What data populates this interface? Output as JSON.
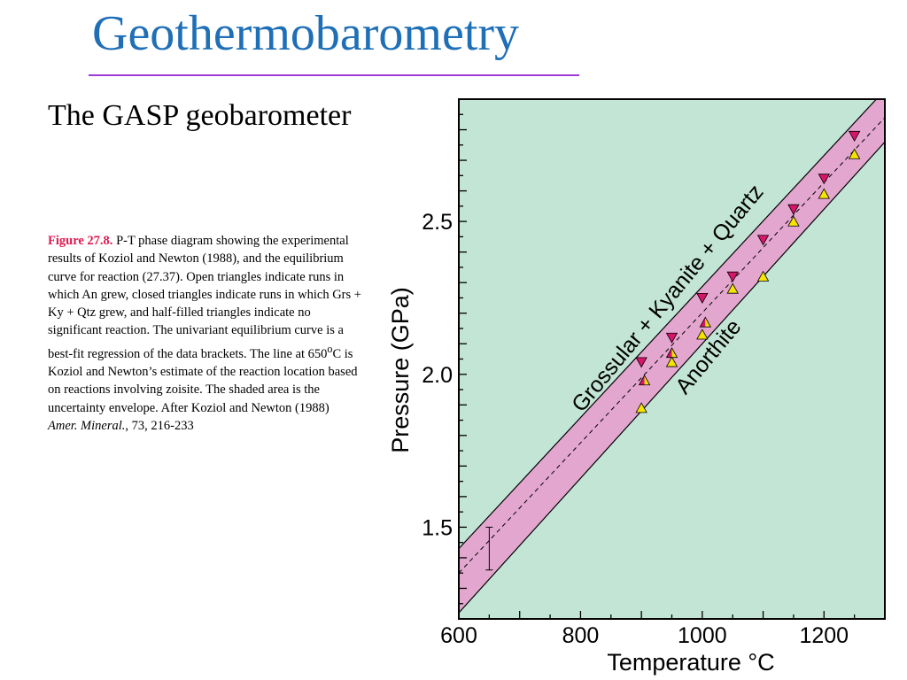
{
  "slide": {
    "title": "Geothermobarometry",
    "subtitle": "The GASP geobarometer"
  },
  "caption": {
    "figure_label": "Figure 27.8.",
    "text_1": " P-T phase diagram showing the experimental results of Koziol and Newton (1988), and the equilibrium curve for reaction (27.37). Open triangles indicate runs in which An grew, closed triangles indicate runs in which Grs + Ky + Qtz grew, and half-filled triangles indicate no significant reaction. The univariant equilibrium curve is a best-fit regression of the data brackets. The line at 650",
    "superscript": "o",
    "text_2": "C is Koziol and Newton’s estimate of the reaction location based on reactions involving zoisite. The shaded area is the uncertainty envelope. After Koziol and Newton (1988) ",
    "journal": "Amer. Mineral.",
    "text_3": ", 73, 216-233"
  },
  "chart_data": {
    "type": "scatter",
    "xlabel": "Temperature °C",
    "ylabel": "Pressure (GPa)",
    "xlim": [
      600,
      1300
    ],
    "ylim": [
      1.2,
      2.9
    ],
    "x_ticks": [
      600,
      800,
      1000,
      1200
    ],
    "y_ticks": [
      1.5,
      2.0,
      2.5
    ],
    "grid": false,
    "background_color": "#c3e5d5",
    "envelope_color": "#e3a7cf",
    "equilibrium_curve": {
      "start": [
        600,
        1.35
      ],
      "end": [
        1300,
        2.84
      ]
    },
    "uncertainty_envelope": {
      "upper": {
        "start": [
          600,
          1.43
        ],
        "end": [
          1300,
          2.93
        ]
      },
      "lower": {
        "start": [
          600,
          1.22
        ],
        "end": [
          1300,
          2.76
        ]
      }
    },
    "zoisite_estimate": {
      "x": 650,
      "y_range": [
        1.36,
        1.5
      ]
    },
    "field_labels": [
      "Grossular + Kyanite + Quartz",
      "Anorthite"
    ],
    "series": [
      {
        "name": "Grs + Ky + Qtz grew",
        "marker": "triangle-down",
        "color": "#d8156a",
        "points": [
          [
            900,
            2.04
          ],
          [
            950,
            2.12
          ],
          [
            1000,
            2.25
          ],
          [
            1050,
            2.32
          ],
          [
            1100,
            2.44
          ],
          [
            1150,
            2.54
          ],
          [
            1200,
            2.64
          ],
          [
            1250,
            2.78
          ]
        ]
      },
      {
        "name": "An grew",
        "marker": "triangle-up",
        "color": "#f5e400",
        "points": [
          [
            900,
            1.89
          ],
          [
            950,
            2.04
          ],
          [
            1000,
            2.13
          ],
          [
            1050,
            2.28
          ],
          [
            1100,
            2.32
          ],
          [
            1150,
            2.5
          ],
          [
            1200,
            2.59
          ],
          [
            1250,
            2.72
          ]
        ]
      },
      {
        "name": "no significant reaction",
        "marker": "triangle-half",
        "colors": [
          "#d8156a",
          "#f5e400"
        ],
        "points": [
          [
            905,
            1.98
          ],
          [
            950,
            2.07
          ],
          [
            1005,
            2.17
          ]
        ]
      }
    ]
  }
}
